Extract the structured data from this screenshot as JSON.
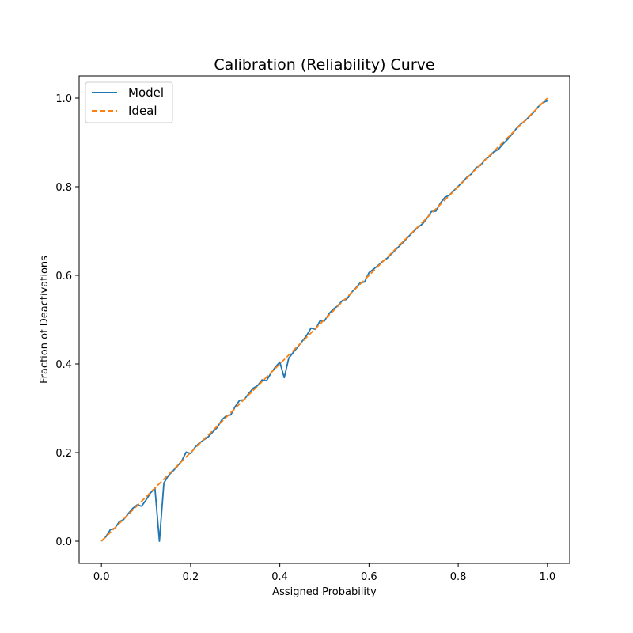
{
  "chart_data": {
    "type": "line",
    "title": "Calibration (Reliability) Curve",
    "xlabel": "Assigned Probability",
    "ylabel": "Fraction of Deactivations",
    "xlim": [
      -0.05,
      1.05
    ],
    "ylim": [
      -0.05,
      1.05
    ],
    "xticks": [
      0.0,
      0.2,
      0.4,
      0.6,
      0.8,
      1.0
    ],
    "yticks": [
      0.0,
      0.2,
      0.4,
      0.6,
      0.8,
      1.0
    ],
    "xtick_labels": [
      "0.0",
      "0.2",
      "0.4",
      "0.6",
      "0.8",
      "1.0"
    ],
    "ytick_labels": [
      "0.0",
      "0.2",
      "0.4",
      "0.6",
      "0.8",
      "1.0"
    ],
    "grid": false,
    "legend": {
      "location": "upper-left",
      "entries": [
        "Model",
        "Ideal"
      ]
    },
    "series": [
      {
        "name": "Model",
        "style": "solid",
        "color": "#1f77b4",
        "x": [
          0.0,
          0.01,
          0.02,
          0.03,
          0.04,
          0.05,
          0.06,
          0.07,
          0.08,
          0.09,
          0.1,
          0.11,
          0.12,
          0.13,
          0.14,
          0.15,
          0.16,
          0.17,
          0.18,
          0.19,
          0.2,
          0.21,
          0.22,
          0.23,
          0.24,
          0.25,
          0.26,
          0.27,
          0.28,
          0.29,
          0.3,
          0.31,
          0.32,
          0.33,
          0.34,
          0.35,
          0.36,
          0.37,
          0.38,
          0.39,
          0.4,
          0.41,
          0.42,
          0.43,
          0.44,
          0.45,
          0.46,
          0.47,
          0.48,
          0.49,
          0.5,
          0.51,
          0.52,
          0.53,
          0.54,
          0.55,
          0.56,
          0.57,
          0.58,
          0.59,
          0.6,
          0.61,
          0.62,
          0.63,
          0.64,
          0.65,
          0.66,
          0.67,
          0.68,
          0.69,
          0.7,
          0.71,
          0.72,
          0.73,
          0.74,
          0.75,
          0.76,
          0.77,
          0.78,
          0.79,
          0.8,
          0.81,
          0.82,
          0.83,
          0.84,
          0.85,
          0.86,
          0.87,
          0.88,
          0.89,
          0.9,
          0.91,
          0.92,
          0.93,
          0.94,
          0.95,
          0.96,
          0.97,
          0.98,
          0.99,
          1.0
        ],
        "y": [
          0.0,
          0.01,
          0.026,
          0.029,
          0.044,
          0.049,
          0.062,
          0.074,
          0.082,
          0.079,
          0.093,
          0.109,
          0.119,
          0.0,
          0.131,
          0.148,
          0.158,
          0.169,
          0.181,
          0.201,
          0.198,
          0.212,
          0.222,
          0.229,
          0.236,
          0.247,
          0.257,
          0.274,
          0.283,
          0.285,
          0.304,
          0.318,
          0.319,
          0.333,
          0.345,
          0.351,
          0.364,
          0.362,
          0.379,
          0.393,
          0.404,
          0.369,
          0.413,
          0.426,
          0.438,
          0.451,
          0.464,
          0.481,
          0.478,
          0.497,
          0.497,
          0.513,
          0.524,
          0.531,
          0.543,
          0.546,
          0.561,
          0.571,
          0.583,
          0.585,
          0.606,
          0.614,
          0.622,
          0.631,
          0.638,
          0.648,
          0.658,
          0.668,
          0.678,
          0.689,
          0.699,
          0.709,
          0.716,
          0.729,
          0.744,
          0.745,
          0.763,
          0.776,
          0.781,
          0.791,
          0.801,
          0.811,
          0.822,
          0.829,
          0.843,
          0.848,
          0.861,
          0.868,
          0.879,
          0.884,
          0.896,
          0.906,
          0.918,
          0.931,
          0.941,
          0.949,
          0.959,
          0.969,
          0.981,
          0.99,
          0.994
        ]
      },
      {
        "name": "Ideal",
        "style": "dashed",
        "color": "#ff7f0e",
        "x": [
          0.0,
          1.0
        ],
        "y": [
          0.0,
          1.0
        ]
      }
    ]
  }
}
